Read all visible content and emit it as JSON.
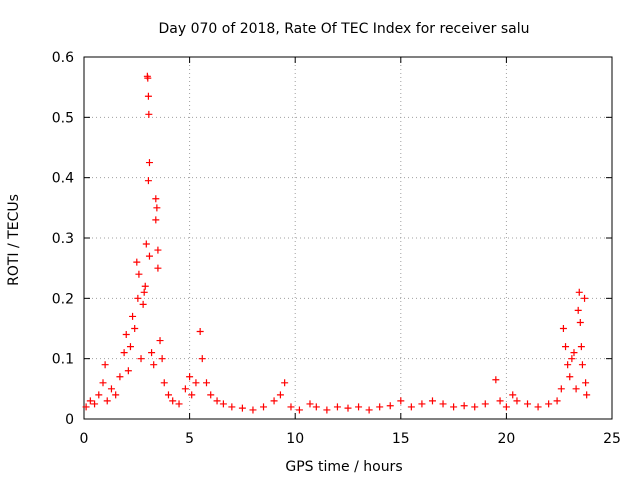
{
  "chart_data": {
    "type": "scatter",
    "title": "Day 070 of 2018, Rate Of TEC Index for receiver salu",
    "xlabel": "GPS time / hours",
    "ylabel": "ROTI / TECUs",
    "xlim": [
      0,
      25
    ],
    "ylim": [
      0,
      0.6
    ],
    "x_ticks": [
      0,
      5,
      10,
      15,
      20,
      25
    ],
    "x_tick_labels": [
      "0",
      "5",
      "10",
      "15",
      "20",
      "25"
    ],
    "y_ticks": [
      0,
      0.1,
      0.2,
      0.3,
      0.4,
      0.5,
      0.6
    ],
    "y_tick_labels": [
      "0",
      "0.1",
      "0.2",
      "0.3",
      "0.4",
      "0.5",
      "0.6"
    ],
    "grid": true,
    "marker": "+",
    "marker_color": "#ff0000",
    "series": [
      {
        "name": "ROTI",
        "points": [
          [
            0.1,
            0.02
          ],
          [
            0.3,
            0.03
          ],
          [
            0.5,
            0.025
          ],
          [
            0.7,
            0.04
          ],
          [
            0.9,
            0.06
          ],
          [
            1.0,
            0.09
          ],
          [
            1.1,
            0.03
          ],
          [
            1.3,
            0.05
          ],
          [
            1.5,
            0.04
          ],
          [
            1.7,
            0.07
          ],
          [
            1.9,
            0.11
          ],
          [
            2.0,
            0.14
          ],
          [
            2.1,
            0.08
          ],
          [
            2.2,
            0.12
          ],
          [
            2.3,
            0.17
          ],
          [
            2.4,
            0.15
          ],
          [
            2.5,
            0.26
          ],
          [
            2.55,
            0.2
          ],
          [
            2.6,
            0.24
          ],
          [
            2.7,
            0.1
          ],
          [
            2.8,
            0.19
          ],
          [
            2.85,
            0.21
          ],
          [
            2.9,
            0.22
          ],
          [
            2.95,
            0.29
          ],
          [
            3.0,
            0.568
          ],
          [
            3.02,
            0.565
          ],
          [
            3.05,
            0.535
          ],
          [
            3.07,
            0.505
          ],
          [
            3.1,
            0.425
          ],
          [
            3.05,
            0.395
          ],
          [
            3.1,
            0.27
          ],
          [
            3.2,
            0.11
          ],
          [
            3.3,
            0.09
          ],
          [
            3.4,
            0.365
          ],
          [
            3.45,
            0.35
          ],
          [
            3.4,
            0.33
          ],
          [
            3.5,
            0.28
          ],
          [
            3.5,
            0.25
          ],
          [
            3.6,
            0.13
          ],
          [
            3.7,
            0.1
          ],
          [
            3.8,
            0.06
          ],
          [
            4.0,
            0.04
          ],
          [
            4.2,
            0.03
          ],
          [
            4.5,
            0.025
          ],
          [
            4.8,
            0.05
          ],
          [
            5.0,
            0.07
          ],
          [
            5.1,
            0.04
          ],
          [
            5.3,
            0.06
          ],
          [
            5.5,
            0.145
          ],
          [
            5.6,
            0.1
          ],
          [
            5.8,
            0.06
          ],
          [
            6.0,
            0.04
          ],
          [
            6.3,
            0.03
          ],
          [
            6.6,
            0.025
          ],
          [
            7.0,
            0.02
          ],
          [
            7.5,
            0.018
          ],
          [
            8.0,
            0.015
          ],
          [
            8.5,
            0.02
          ],
          [
            9.0,
            0.03
          ],
          [
            9.3,
            0.04
          ],
          [
            9.5,
            0.06
          ],
          [
            9.8,
            0.02
          ],
          [
            10.2,
            0.015
          ],
          [
            10.7,
            0.025
          ],
          [
            11.0,
            0.02
          ],
          [
            11.5,
            0.015
          ],
          [
            12.0,
            0.02
          ],
          [
            12.5,
            0.018
          ],
          [
            13.0,
            0.02
          ],
          [
            13.5,
            0.015
          ],
          [
            14.0,
            0.02
          ],
          [
            14.5,
            0.022
          ],
          [
            15.0,
            0.03
          ],
          [
            15.5,
            0.02
          ],
          [
            16.0,
            0.025
          ],
          [
            16.5,
            0.03
          ],
          [
            17.0,
            0.025
          ],
          [
            17.5,
            0.02
          ],
          [
            18.0,
            0.022
          ],
          [
            18.5,
            0.02
          ],
          [
            19.0,
            0.025
          ],
          [
            19.5,
            0.065
          ],
          [
            19.7,
            0.03
          ],
          [
            20.0,
            0.02
          ],
          [
            20.3,
            0.04
          ],
          [
            20.5,
            0.03
          ],
          [
            21.0,
            0.025
          ],
          [
            21.5,
            0.02
          ],
          [
            22.0,
            0.025
          ],
          [
            22.4,
            0.03
          ],
          [
            22.6,
            0.05
          ],
          [
            22.7,
            0.15
          ],
          [
            22.8,
            0.12
          ],
          [
            22.9,
            0.09
          ],
          [
            23.0,
            0.07
          ],
          [
            23.1,
            0.1
          ],
          [
            23.2,
            0.11
          ],
          [
            23.3,
            0.05
          ],
          [
            23.4,
            0.18
          ],
          [
            23.45,
            0.21
          ],
          [
            23.5,
            0.16
          ],
          [
            23.55,
            0.12
          ],
          [
            23.6,
            0.09
          ],
          [
            23.7,
            0.2
          ],
          [
            23.75,
            0.06
          ],
          [
            23.8,
            0.04
          ]
        ]
      }
    ]
  }
}
